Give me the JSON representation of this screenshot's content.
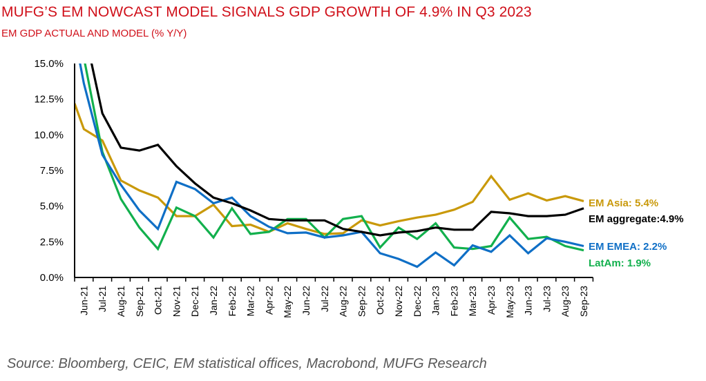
{
  "chart_data": {
    "type": "line",
    "title": "MUFG’S EM NOWCAST MODEL SIGNALS GDP GROWTH OF 4.9% IN Q3 2023",
    "subtitle": "EM GDP ACTUAL AND MODEL (% Y/Y)",
    "xlabel": "",
    "ylabel": "",
    "ylim": [
      0,
      15
    ],
    "yticks": [
      "0.0%",
      "2.5%",
      "5.0%",
      "7.5%",
      "10.0%",
      "12.5%",
      "15.0%"
    ],
    "ytick_values": [
      0,
      2.5,
      5,
      7.5,
      10,
      12.5,
      15
    ],
    "grid": false,
    "categories": [
      "Jun-21",
      "Jul-21",
      "Aug-21",
      "Sep-21",
      "Oct-21",
      "Nov-21",
      "Dec-21",
      "Jan-22",
      "Feb-22",
      "Mar-22",
      "Apr-22",
      "May-22",
      "Jun-22",
      "Jul-22",
      "Aug-22",
      "Sep-22",
      "Oct-22",
      "Nov-22",
      "Dec-22",
      "Jan-23",
      "Feb-23",
      "Mar-23",
      "Apr-23",
      "May-23",
      "Jun-23",
      "Jul-23",
      "Aug-23",
      "Sep-23"
    ],
    "series": [
      {
        "name": "EM Asia",
        "color": "#c9990a",
        "start_value": 12.2,
        "values": [
          10.4,
          9.6,
          6.8,
          6.1,
          5.6,
          4.3,
          4.3,
          5.1,
          3.6,
          3.7,
          3.2,
          3.8,
          3.4,
          3.05,
          3.1,
          4.0,
          3.65,
          3.95,
          4.2,
          4.4,
          4.75,
          5.3,
          7.1,
          5.45,
          5.9,
          5.4,
          5.7,
          5.35
        ],
        "end_label": "EM Asia: 5.4%"
      },
      {
        "name": "EM aggregate",
        "color": "#000000",
        "start_value": 22.0,
        "values": [
          17.5,
          11.5,
          9.1,
          8.9,
          9.3,
          7.8,
          6.6,
          5.6,
          5.2,
          4.7,
          4.1,
          4.0,
          4.0,
          4.0,
          3.4,
          3.2,
          2.95,
          3.15,
          3.25,
          3.5,
          3.35,
          3.35,
          4.6,
          4.5,
          4.3,
          4.3,
          4.4,
          4.85
        ],
        "end_label": "EM aggregate:4.9%"
      },
      {
        "name": "EM EMEA",
        "color": "#0f6fc6",
        "start_value": 17.0,
        "values": [
          13.6,
          8.6,
          6.5,
          4.7,
          3.4,
          6.7,
          6.2,
          5.2,
          5.6,
          4.3,
          3.55,
          3.1,
          3.15,
          2.8,
          2.95,
          3.2,
          1.7,
          1.3,
          0.75,
          1.75,
          0.85,
          2.25,
          1.8,
          2.95,
          1.7,
          2.75,
          2.5,
          2.2
        ],
        "end_label": "EM EMEA: 2.2%"
      },
      {
        "name": "LatAm",
        "color": "#12b04d",
        "start_value": 18.0,
        "values": [
          15.4,
          8.8,
          5.5,
          3.5,
          2.0,
          4.9,
          4.3,
          2.8,
          4.85,
          3.05,
          3.2,
          4.1,
          4.1,
          2.8,
          4.1,
          4.3,
          2.1,
          3.5,
          2.7,
          3.8,
          2.1,
          2.0,
          2.2,
          4.2,
          2.7,
          2.85,
          2.2,
          1.9
        ],
        "end_label": "LatAm: 1.9%"
      }
    ],
    "legend": "end-of-line labels (right)"
  },
  "source": "Source: Bloomberg, CEIC, EM statistical offices, Macrobond, MUFG Research"
}
